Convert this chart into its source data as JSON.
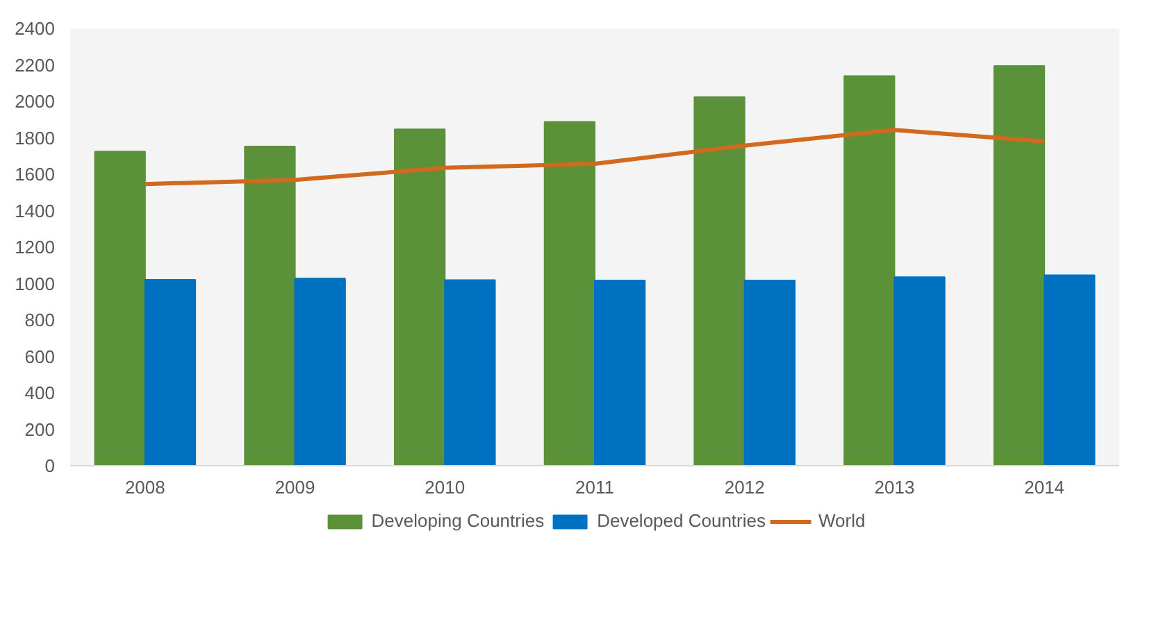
{
  "chart_data": {
    "type": "bar",
    "categories": [
      "2008",
      "2009",
      "2010",
      "2011",
      "2012",
      "2013",
      "2014"
    ],
    "series": [
      {
        "name": "Developing Countries",
        "color": "#5b9138",
        "values": [
          1725,
          1752,
          1847,
          1888,
          2024,
          2139,
          2194
        ]
      },
      {
        "name": "Developed Countries",
        "color": "#0070c0",
        "values": [
          1021,
          1028,
          1019,
          1017,
          1017,
          1035,
          1046
        ]
      },
      {
        "name": "World",
        "type": "line",
        "color": "#d2691e",
        "values": [
          1546,
          1569,
          1635,
          1657,
          1757,
          1843,
          1780
        ]
      }
    ],
    "ylim": [
      0,
      2400
    ],
    "yticks": [
      0,
      200,
      400,
      600,
      800,
      1000,
      1200,
      1400,
      1600,
      1800,
      2000,
      2200,
      2400
    ],
    "grid": false,
    "legend": "bottom"
  }
}
